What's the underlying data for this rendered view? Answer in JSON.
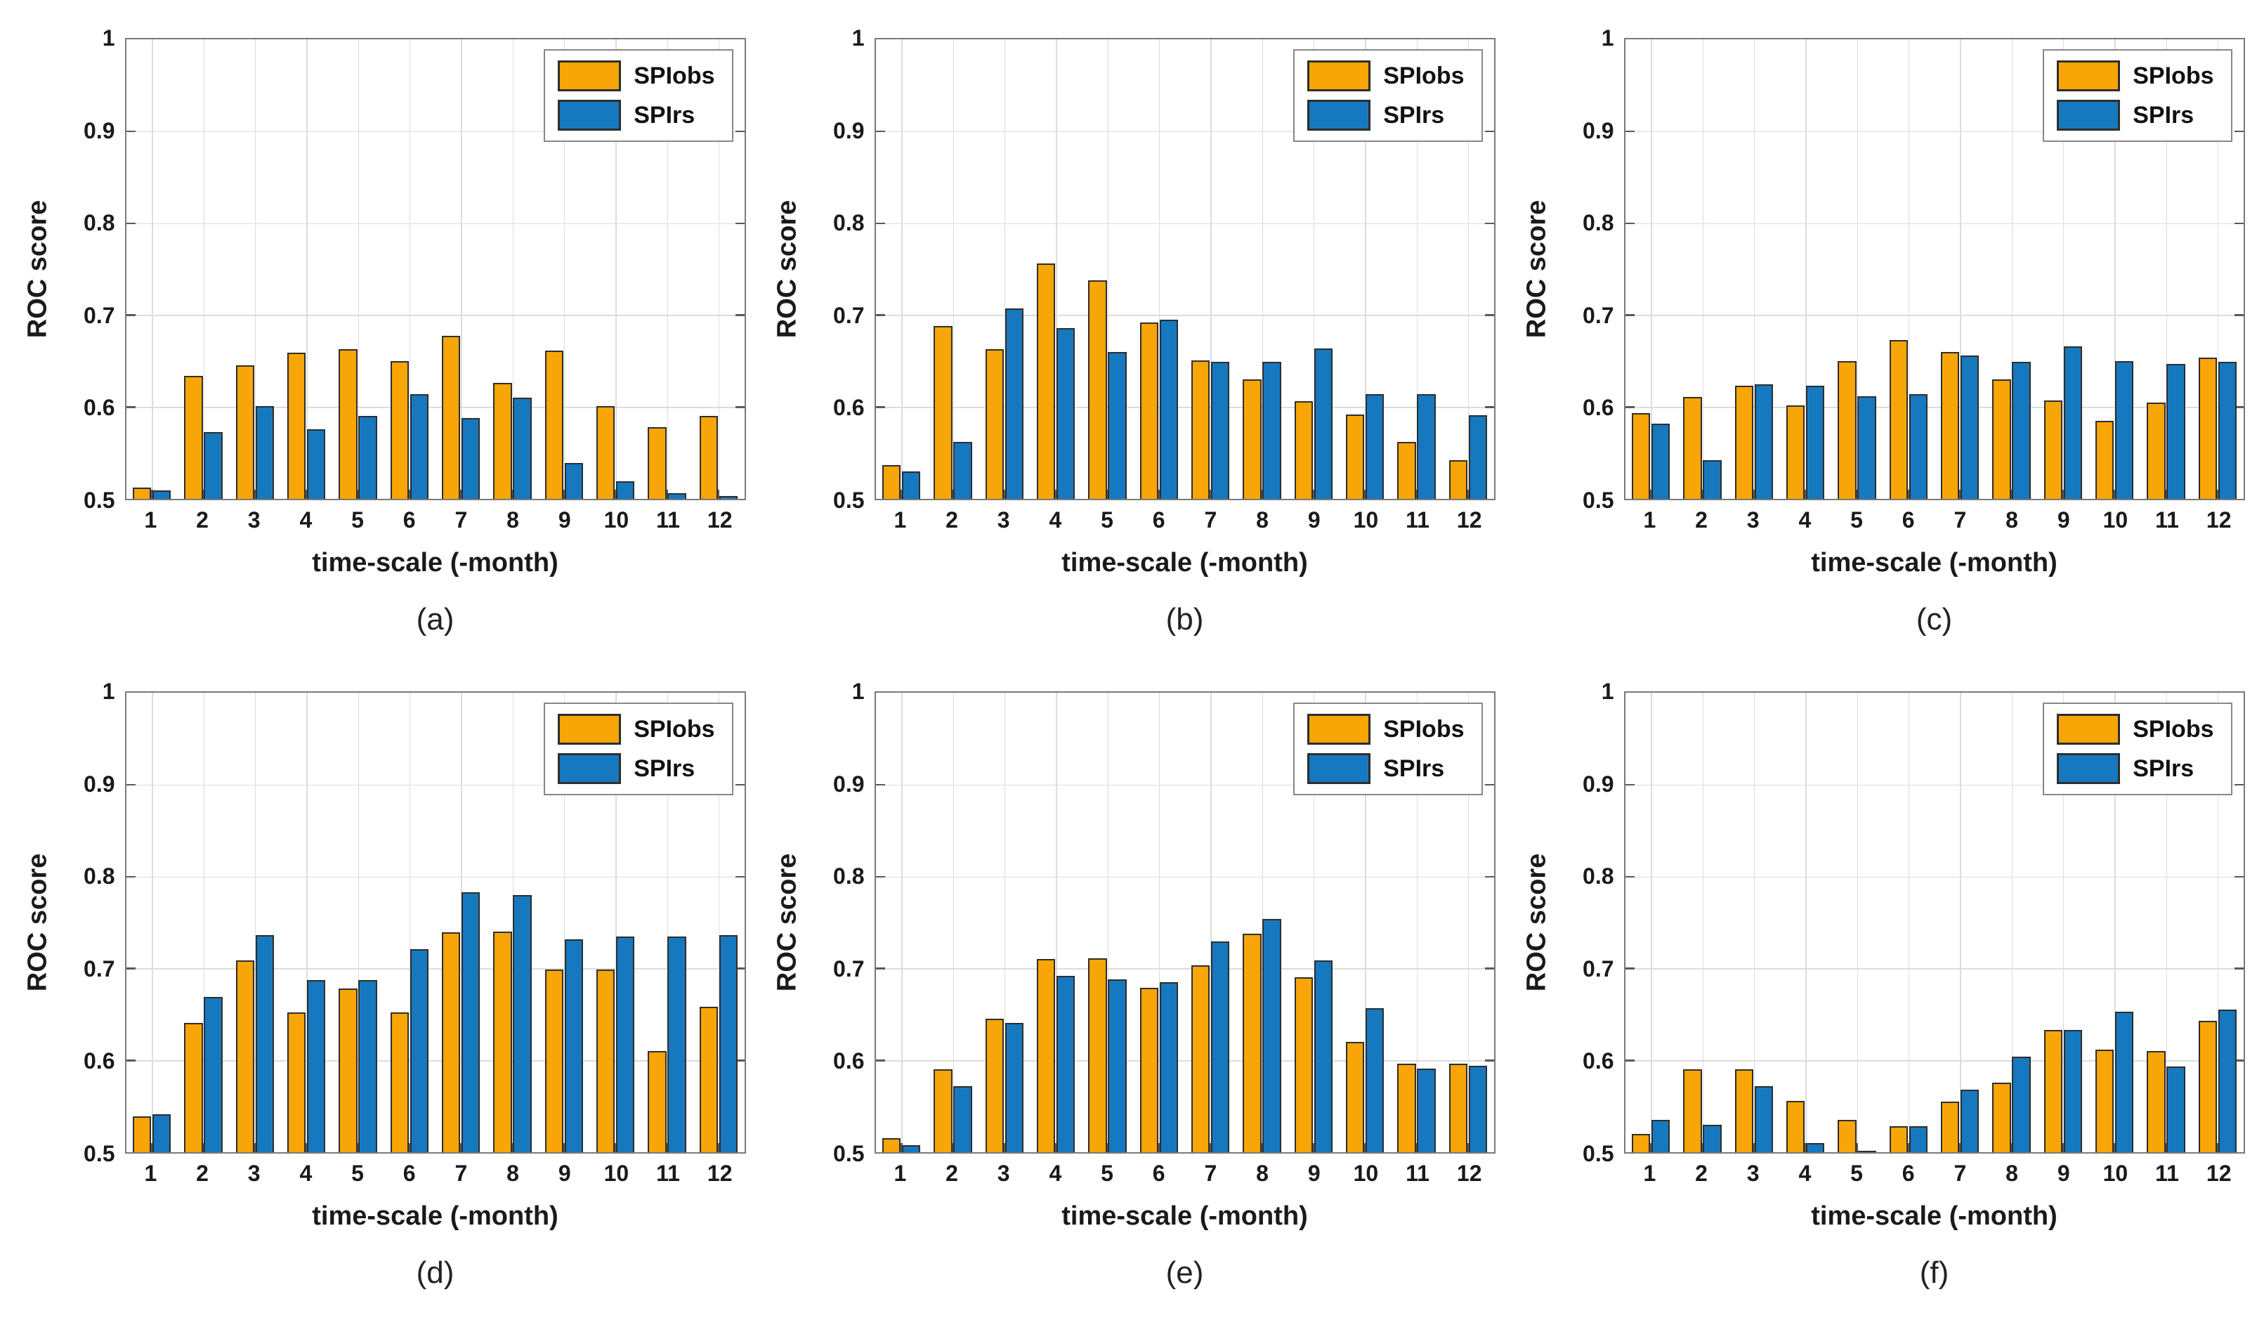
{
  "figure": {
    "ylabel": "ROC score",
    "xlabel": "time-scale (-month)",
    "ylim": [
      0.5,
      1.0
    ],
    "yticks": [
      {
        "value": 0.5,
        "label": "0.5"
      },
      {
        "value": 0.6,
        "label": "0.6"
      },
      {
        "value": 0.7,
        "label": "0.7"
      },
      {
        "value": 0.8,
        "label": "0.8"
      },
      {
        "value": 0.9,
        "label": "0.9"
      },
      {
        "value": 1.0,
        "label": "1"
      }
    ],
    "legend": [
      {
        "name": "SPIobs",
        "color": "#F8A508"
      },
      {
        "name": "SPIrs",
        "color": "#1678BE"
      }
    ],
    "colors": {
      "bar_edge": "#2e2e2e",
      "grid_line": "#dcdcdc",
      "axes_box": "#7a7a7a",
      "text": "#1a1a1a",
      "background": "#ffffff"
    },
    "grid": "on",
    "legend_position": "top-right"
  },
  "chart_data": [
    {
      "type": "bar",
      "caption": "(a)",
      "categories": [
        "1",
        "2",
        "3",
        "4",
        "5",
        "6",
        "7",
        "8",
        "9",
        "10",
        "11",
        "12"
      ],
      "series": [
        {
          "name": "SPIobs",
          "values": [
            0.512,
            0.634,
            0.645,
            0.659,
            0.663,
            0.65,
            0.677,
            0.626,
            0.661,
            0.601,
            0.578,
            0.59
          ]
        },
        {
          "name": "SPIrs",
          "values": [
            0.509,
            0.573,
            0.601,
            0.576,
            0.59,
            0.614,
            0.588,
            0.61,
            0.539,
            0.519,
            0.506,
            0.503
          ]
        }
      ],
      "ylim": [
        0.5,
        1.0
      ]
    },
    {
      "type": "bar",
      "caption": "(b)",
      "categories": [
        "1",
        "2",
        "3",
        "4",
        "5",
        "6",
        "7",
        "8",
        "9",
        "10",
        "11",
        "12"
      ],
      "series": [
        {
          "name": "SPIobs",
          "values": [
            0.537,
            0.688,
            0.663,
            0.756,
            0.738,
            0.692,
            0.651,
            0.63,
            0.606,
            0.592,
            0.562,
            0.542
          ]
        },
        {
          "name": "SPIrs",
          "values": [
            0.53,
            0.562,
            0.707,
            0.686,
            0.66,
            0.695,
            0.649,
            0.649,
            0.664,
            0.614,
            0.614,
            0.591
          ]
        }
      ],
      "ylim": [
        0.5,
        1.0
      ]
    },
    {
      "type": "bar",
      "caption": "(c)",
      "categories": [
        "1",
        "2",
        "3",
        "4",
        "5",
        "6",
        "7",
        "8",
        "9",
        "10",
        "11",
        "12"
      ],
      "series": [
        {
          "name": "SPIobs",
          "values": [
            0.593,
            0.611,
            0.623,
            0.602,
            0.65,
            0.673,
            0.66,
            0.63,
            0.607,
            0.585,
            0.605,
            0.654
          ]
        },
        {
          "name": "SPIrs",
          "values": [
            0.582,
            0.542,
            0.625,
            0.623,
            0.612,
            0.614,
            0.656,
            0.649,
            0.666,
            0.65,
            0.647,
            0.649
          ]
        }
      ],
      "ylim": [
        0.5,
        1.0
      ]
    },
    {
      "type": "bar",
      "caption": "(d)",
      "categories": [
        "1",
        "2",
        "3",
        "4",
        "5",
        "6",
        "7",
        "8",
        "9",
        "10",
        "11",
        "12"
      ],
      "series": [
        {
          "name": "SPIobs",
          "values": [
            0.539,
            0.641,
            0.709,
            0.652,
            0.678,
            0.652,
            0.739,
            0.74,
            0.699,
            0.699,
            0.61,
            0.658
          ]
        },
        {
          "name": "SPIrs",
          "values": [
            0.541,
            0.669,
            0.736,
            0.687,
            0.687,
            0.721,
            0.783,
            0.78,
            0.732,
            0.735,
            0.735,
            0.736
          ]
        }
      ],
      "ylim": [
        0.5,
        1.0
      ]
    },
    {
      "type": "bar",
      "caption": "(e)",
      "categories": [
        "1",
        "2",
        "3",
        "4",
        "5",
        "6",
        "7",
        "8",
        "9",
        "10",
        "11",
        "12"
      ],
      "series": [
        {
          "name": "SPIobs",
          "values": [
            0.515,
            0.59,
            0.645,
            0.71,
            0.711,
            0.679,
            0.703,
            0.738,
            0.69,
            0.62,
            0.596,
            0.596
          ]
        },
        {
          "name": "SPIrs",
          "values": [
            0.508,
            0.572,
            0.641,
            0.692,
            0.688,
            0.685,
            0.729,
            0.754,
            0.709,
            0.657,
            0.591,
            0.594
          ]
        }
      ],
      "ylim": [
        0.5,
        1.0
      ]
    },
    {
      "type": "bar",
      "caption": "(f)",
      "categories": [
        "1",
        "2",
        "3",
        "4",
        "5",
        "6",
        "7",
        "8",
        "9",
        "10",
        "11",
        "12"
      ],
      "series": [
        {
          "name": "SPIobs",
          "values": [
            0.52,
            0.59,
            0.59,
            0.556,
            0.535,
            0.528,
            0.555,
            0.576,
            0.633,
            0.612,
            0.61,
            0.643
          ]
        },
        {
          "name": "SPIrs",
          "values": [
            0.535,
            0.53,
            0.572,
            0.51,
            0.501,
            0.528,
            0.568,
            0.604,
            0.633,
            0.653,
            0.593,
            0.655
          ]
        }
      ],
      "ylim": [
        0.5,
        1.0
      ]
    }
  ]
}
